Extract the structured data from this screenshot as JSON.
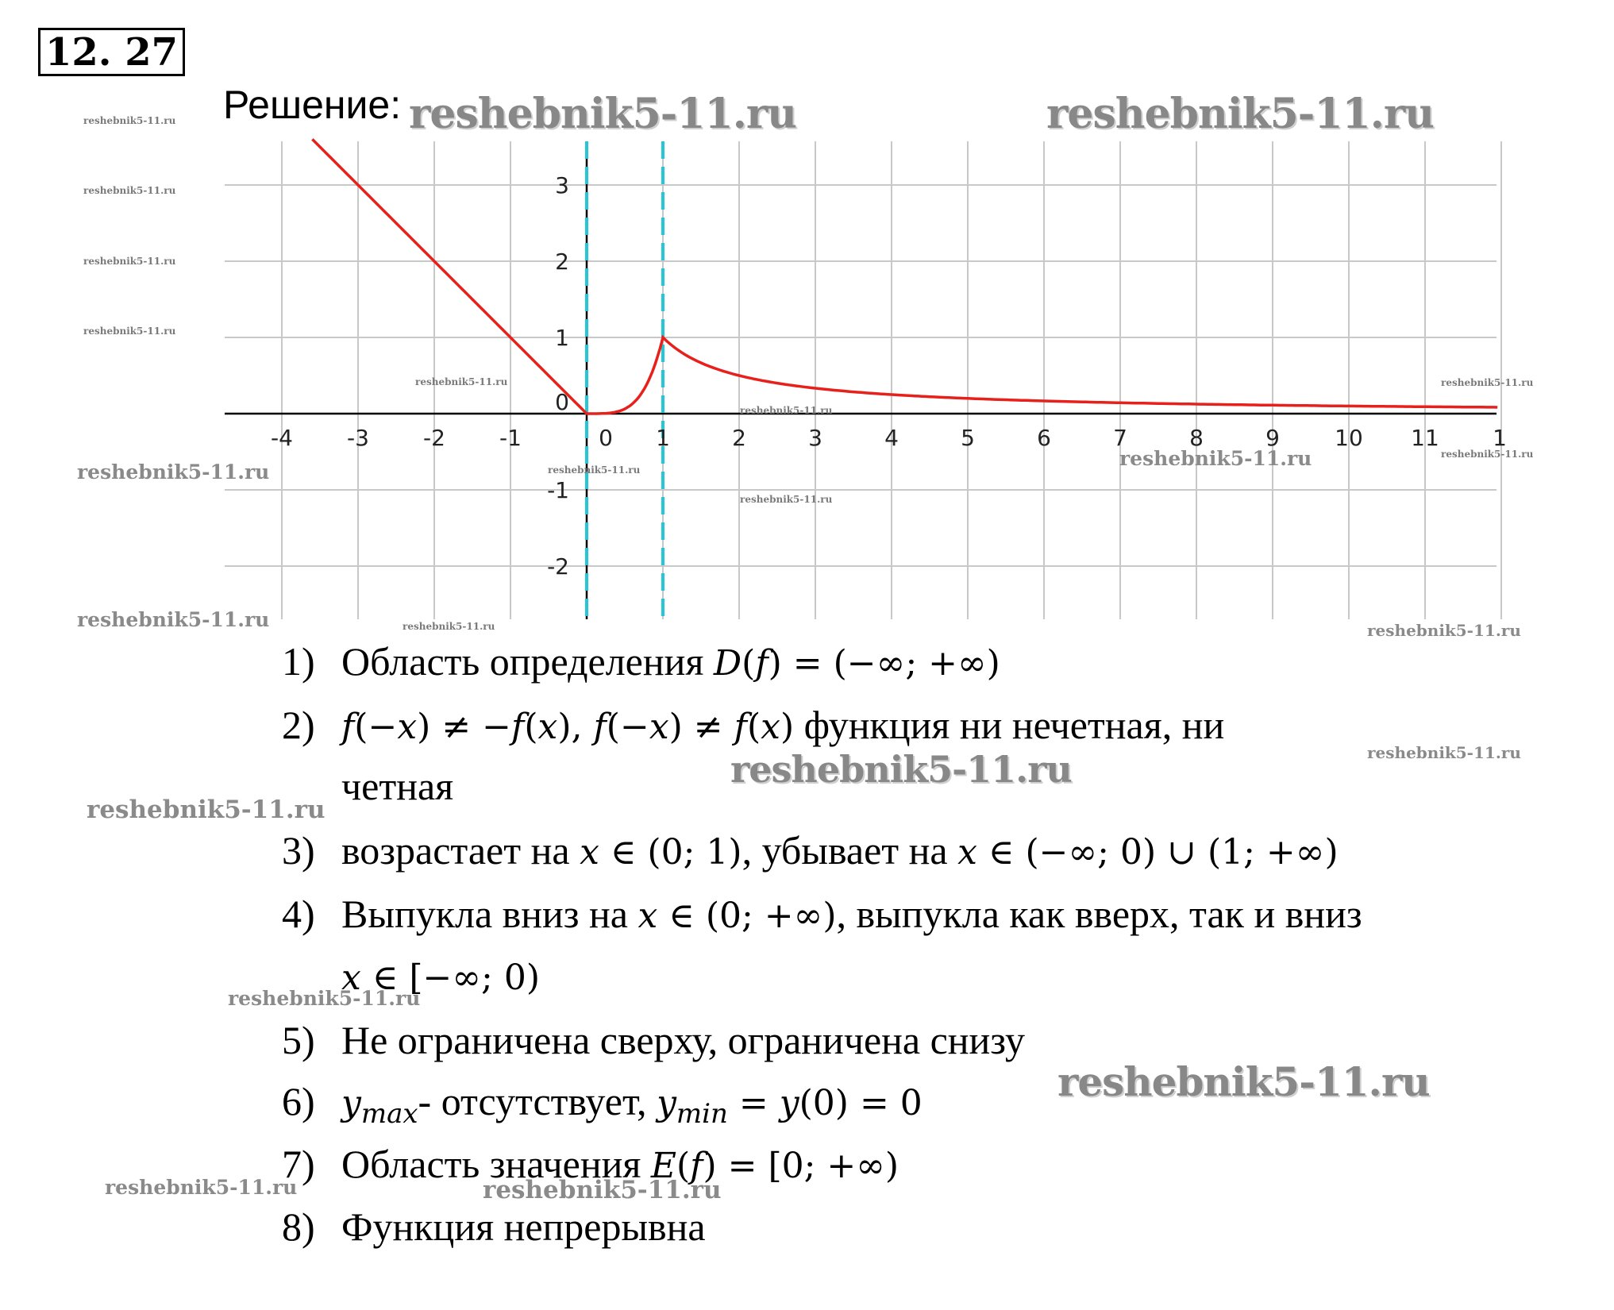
{
  "header": {
    "problem_number": "12. 27",
    "solution_label": "Решение:"
  },
  "chart_data": {
    "type": "line",
    "title": "",
    "xlabel": "",
    "ylabel": "",
    "xlim": [
      -4.75,
      12
    ],
    "ylim": [
      -2.7,
      3.5
    ],
    "x_ticks": [
      "-4",
      "-3",
      "-2",
      "-1",
      "0",
      "1",
      "2",
      "3",
      "4",
      "5",
      "6",
      "7",
      "8",
      "9",
      "10",
      "11",
      "1"
    ],
    "y_ticks": [
      "3",
      "2",
      "1",
      "0",
      "-1",
      "-2"
    ],
    "grid": true,
    "asymptotes_x": [
      0,
      1
    ],
    "series": [
      {
        "piecewise": [
          {
            "domain": [
              -3.6,
              0
            ],
            "formula": "y = -x"
          },
          {
            "domain": [
              0,
              1
            ],
            "formula": "y = x^4 (approx.)"
          },
          {
            "domain": [
              1,
              12
            ],
            "formula": "y = 1/x"
          }
        ],
        "x": [
          -3.6,
          -3,
          -2,
          -1,
          0,
          0.5,
          0.8,
          1,
          1.5,
          2,
          3,
          4,
          5,
          6,
          7,
          8,
          9,
          10,
          11,
          12
        ],
        "y": [
          3.6,
          3,
          2,
          1,
          0,
          0.0625,
          0.41,
          1,
          0.667,
          0.5,
          0.333,
          0.25,
          0.2,
          0.167,
          0.143,
          0.125,
          0.111,
          0.1,
          0.091,
          0.083
        ]
      }
    ],
    "colors": {
      "curve": "#e8201c",
      "asymptote": "#22c8d6",
      "grid": "#c8c8c8",
      "axis": "#000000"
    }
  },
  "items": [
    {
      "n": "1)",
      "parts": [
        {
          "t": "Область определения "
        },
        {
          "m": "D"
        },
        {
          "u": "("
        },
        {
          "m": "f"
        },
        {
          "u": ") = (−∞; +∞)"
        }
      ]
    },
    {
      "n": "2)",
      "parts": [
        {
          "m": "f"
        },
        {
          "u": "(−"
        },
        {
          "m": "x"
        },
        {
          "u": ") ≠ −"
        },
        {
          "m": "f"
        },
        {
          "u": "("
        },
        {
          "m": "x"
        },
        {
          "u": "), "
        },
        {
          "m": "f"
        },
        {
          "u": "(−"
        },
        {
          "m": "x"
        },
        {
          "u": ") ≠ "
        },
        {
          "m": "f"
        },
        {
          "u": "("
        },
        {
          "m": "x"
        },
        {
          "u": ")"
        },
        {
          "t": " функция ни нечетная, ни"
        }
      ]
    },
    {
      "n": "",
      "parts": [
        {
          "t": "четная"
        }
      ]
    },
    {
      "n": "3)",
      "parts": [
        {
          "t": "возрастает на "
        },
        {
          "m": "x"
        },
        {
          "u": " ∈ (0; 1)"
        },
        {
          "t": ", убывает на "
        },
        {
          "m": "x"
        },
        {
          "u": " ∈ (−∞; 0) ∪ (1; +∞)"
        }
      ]
    },
    {
      "n": "4)",
      "parts": [
        {
          "t": "Выпукла вниз на "
        },
        {
          "m": "x"
        },
        {
          "u": " ∈ (0; +∞)"
        },
        {
          "t": ", выпукла как вверх, так и вниз"
        }
      ]
    },
    {
      "n": "",
      "parts": [
        {
          "m": "x"
        },
        {
          "u": " ∈ [−∞; 0)"
        }
      ]
    },
    {
      "n": "5)",
      "parts": [
        {
          "t": "Не ограничена сверху, ограничена снизу"
        }
      ]
    },
    {
      "n": "6)",
      "parts": [
        {
          "m": "y"
        },
        {
          "s": "max"
        },
        {
          "t": "- отсутствует, "
        },
        {
          "m": "y"
        },
        {
          "s": "min"
        },
        {
          "u": " = "
        },
        {
          "m": "y"
        },
        {
          "u": "(0) = 0"
        }
      ]
    },
    {
      "n": "7)",
      "parts": [
        {
          "t": "Область значения "
        },
        {
          "m": "E"
        },
        {
          "u": "("
        },
        {
          "m": "f"
        },
        {
          "u": ") = [0; +∞)"
        }
      ]
    },
    {
      "n": "8)",
      "parts": [
        {
          "t": "Функция непрерывна"
        }
      ]
    }
  ],
  "watermarks": [
    "reshebnik5-11.ru",
    "reshebnik5-11.ru",
    "reshebnik5-11.ru",
    "reshebnik5-11.ru",
    "reshebnik5-11.ru",
    "reshebnik5-11.ru",
    "reshebnik5-11.ru",
    "reshebnik5-11.ru",
    "reshebnik5-11.ru",
    "reshebnik5-11.ru",
    "reshebnik5-11.ru",
    "reshebnik5-11.ru",
    "reshebnik5-11.ru",
    "reshebnik5-11.ru",
    "reshebnik5-11.ru",
    "reshebnik5-11.ru",
    "reshebnik5-11.ru",
    "reshebnik5-11.ru",
    "reshebnik5-11.ru",
    "reshebnik5-11.ru",
    "reshebnik5-11.ru",
    "reshebnik5-11.ru",
    "reshebnik5-11.ru",
    "reshebnik5-11.ru"
  ]
}
